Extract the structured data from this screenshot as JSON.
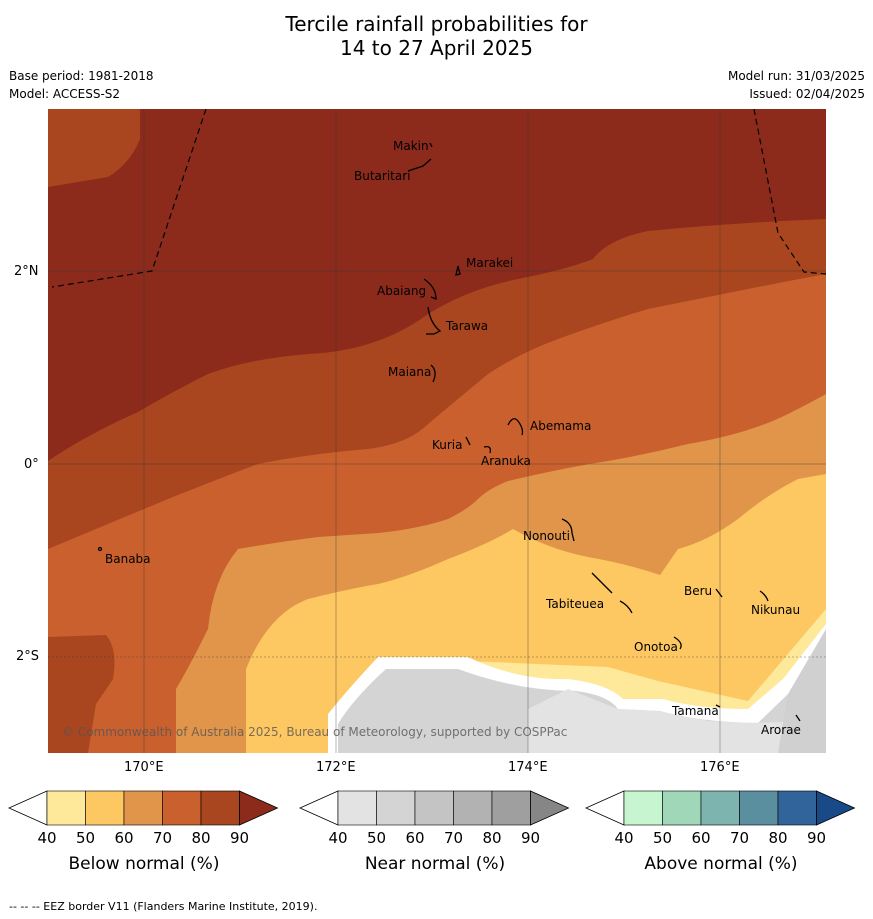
{
  "title": {
    "line1": "Tercile rainfall probabilities for",
    "line2": "14 to 27 April 2025"
  },
  "meta_left": {
    "base_period": "Base period: 1981-2018",
    "model": "Model: ACCESS-S2"
  },
  "meta_right": {
    "model_run": "Model run: 31/03/2025",
    "issued": "Issued: 02/04/2025"
  },
  "axes": {
    "x_ticks": [
      "170°E",
      "172°E",
      "174°E",
      "176°E"
    ],
    "y_ticks": [
      "2°N",
      "0°",
      "2°S"
    ]
  },
  "places": [
    {
      "id": "makin",
      "label": "Makin"
    },
    {
      "id": "butaritari",
      "label": "Butaritari"
    },
    {
      "id": "marakei",
      "label": "Marakei"
    },
    {
      "id": "abaiang",
      "label": "Abaiang"
    },
    {
      "id": "tarawa",
      "label": "Tarawa"
    },
    {
      "id": "maiana",
      "label": "Maiana"
    },
    {
      "id": "abemama",
      "label": "Abemama"
    },
    {
      "id": "kuria",
      "label": "Kuria"
    },
    {
      "id": "aranuka",
      "label": "Aranuka"
    },
    {
      "id": "nonouti",
      "label": "Nonouti"
    },
    {
      "id": "banaba",
      "label": "Banaba"
    },
    {
      "id": "beru",
      "label": "Beru"
    },
    {
      "id": "nikunau",
      "label": "Nikunau"
    },
    {
      "id": "tabiteuea",
      "label": "Tabiteuea"
    },
    {
      "id": "onotoa",
      "label": "Onotoa"
    },
    {
      "id": "tamana",
      "label": "Tamana"
    },
    {
      "id": "arorae",
      "label": "Arorae"
    }
  ],
  "copyright": "© Commonwealth of Australia 2025, Bureau of Meteorology, supported by COSPPac",
  "colorbars": [
    {
      "label": "Below normal (%)",
      "ticks": [
        "40",
        "50",
        "60",
        "70",
        "80",
        "90"
      ],
      "colors": [
        "#ffffff",
        "#fee99a",
        "#fdc762",
        "#e0954a",
        "#c9602e",
        "#a9451f",
        "#8c2a1c"
      ]
    },
    {
      "label": "Near normal (%)",
      "ticks": [
        "40",
        "50",
        "60",
        "70",
        "80",
        "90"
      ],
      "colors": [
        "#ffffff",
        "#e3e3e3",
        "#d4d4d4",
        "#c4c4c4",
        "#b2b2b2",
        "#9f9f9f",
        "#868686"
      ]
    },
    {
      "label": "Above normal (%)",
      "ticks": [
        "40",
        "50",
        "60",
        "70",
        "80",
        "90"
      ],
      "colors": [
        "#ffffff",
        "#c7f5cf",
        "#a1d7b9",
        "#7db4b0",
        "#5a8fa0",
        "#30649a",
        "#174a86"
      ]
    }
  ],
  "footer": "-- -- -- EEZ border V11 (Flanders Marine Institute, 2019)."
}
